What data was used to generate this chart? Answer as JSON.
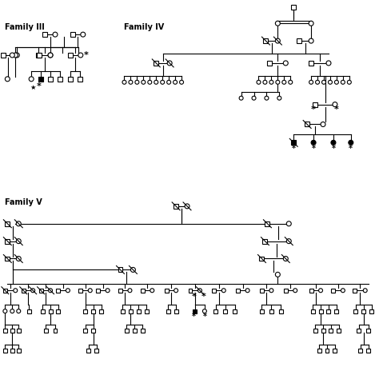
{
  "background": "#ffffff",
  "family_III_label": "Family III",
  "family_IV_label": "Family IV",
  "family_V_label": "Family V"
}
